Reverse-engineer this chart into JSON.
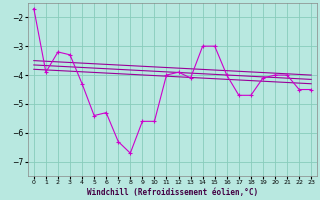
{
  "xlabel": "Windchill (Refroidissement éolien,°C)",
  "ylabel": "",
  "xlim": [
    -0.5,
    23.5
  ],
  "ylim": [
    -7.5,
    -1.5
  ],
  "yticks": [
    -7,
    -6,
    -5,
    -4,
    -3,
    -2
  ],
  "xticks": [
    0,
    1,
    2,
    3,
    4,
    5,
    6,
    7,
    8,
    9,
    10,
    11,
    12,
    13,
    14,
    15,
    16,
    17,
    18,
    19,
    20,
    21,
    22,
    23
  ],
  "bg_color": "#b8e8e0",
  "grid_color": "#88ccbb",
  "line_color": "#990099",
  "line_color2": "#cc00cc",
  "jagged_x": [
    0,
    1,
    2,
    3,
    4,
    5,
    6,
    7,
    8,
    9,
    10,
    11,
    12,
    13,
    14,
    15,
    16,
    17,
    18,
    19,
    20,
    21,
    22,
    23
  ],
  "jagged_y": [
    -1.7,
    -3.9,
    -3.2,
    -3.3,
    -4.3,
    -5.4,
    -5.3,
    -6.3,
    -6.7,
    -5.6,
    -5.6,
    -4.0,
    -3.9,
    -4.1,
    -3.0,
    -3.0,
    -4.0,
    -4.7,
    -4.7,
    -4.1,
    -4.0,
    -4.0,
    -4.5,
    -4.5
  ],
  "line1_x": [
    0,
    23
  ],
  "line1_y": [
    -3.5,
    -4.0
  ],
  "line2_x": [
    0,
    23
  ],
  "line2_y": [
    -3.65,
    -4.15
  ],
  "line3_x": [
    0,
    23
  ],
  "line3_y": [
    -3.8,
    -4.3
  ]
}
